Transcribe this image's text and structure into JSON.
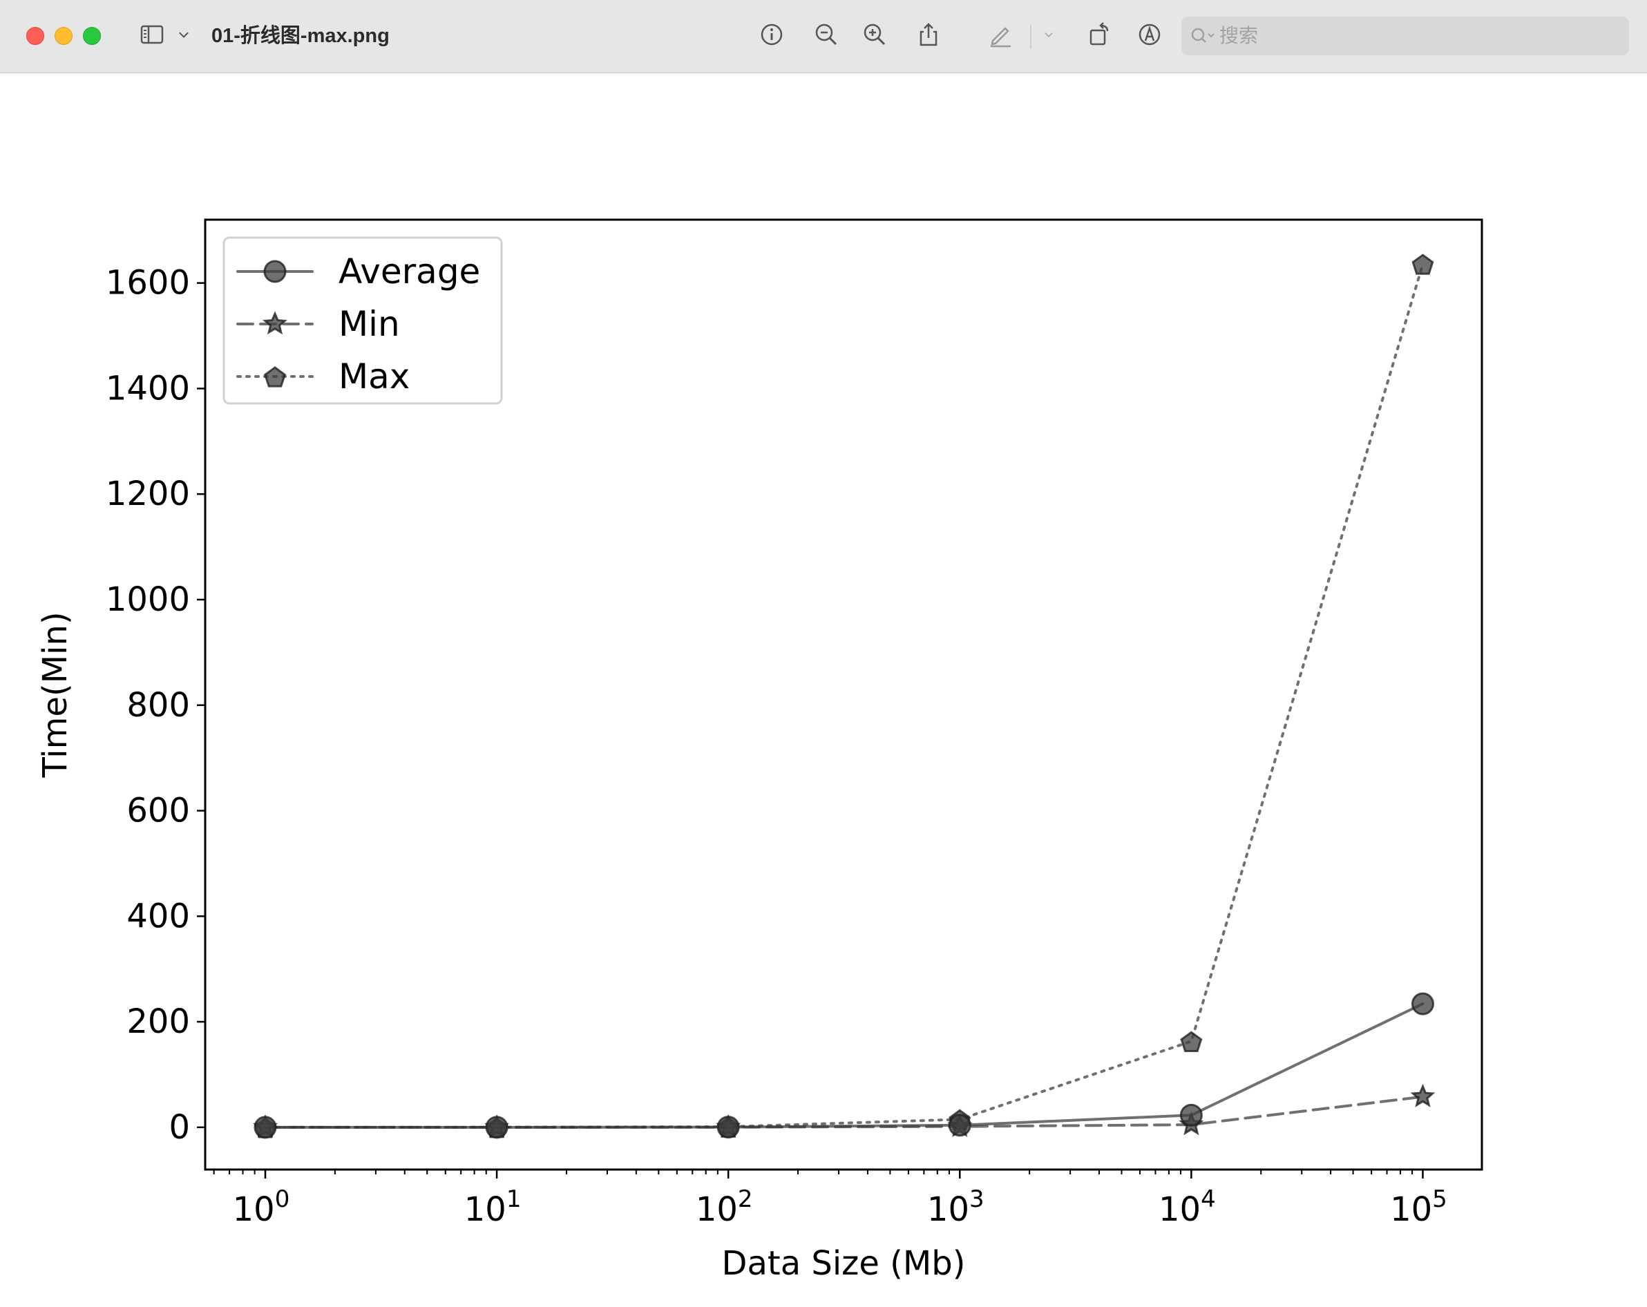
{
  "window": {
    "title": "01-折线图-max.png",
    "search_placeholder": "搜索"
  },
  "toolbar": {
    "icons": [
      "sidebar-icon",
      "chevron-down-icon",
      "info-icon",
      "zoom-out-icon",
      "zoom-in-icon",
      "share-icon",
      "markup-pen-icon",
      "chevron-down-icon",
      "rotate-icon",
      "annotate-icon",
      "search-icon"
    ]
  },
  "chart_data": {
    "type": "line",
    "xlabel": "Data Size (Mb)",
    "ylabel": "Time(Min)",
    "xscale": "log",
    "xlim": [
      0.55,
      180000
    ],
    "ylim": [
      -80,
      1720
    ],
    "x": [
      1,
      10,
      100,
      1000,
      10000,
      100000
    ],
    "x_tick_labels": [
      {
        "base": "10",
        "exp": "0"
      },
      {
        "base": "10",
        "exp": "1"
      },
      {
        "base": "10",
        "exp": "2"
      },
      {
        "base": "10",
        "exp": "3"
      },
      {
        "base": "10",
        "exp": "4"
      },
      {
        "base": "10",
        "exp": "5"
      }
    ],
    "y_ticks": [
      0,
      200,
      400,
      600,
      800,
      1000,
      1200,
      1400,
      1600
    ],
    "y_tick_labels": [
      "0",
      "200",
      "400",
      "600",
      "800",
      "1000",
      "1200",
      "1400",
      "1600"
    ],
    "legend_position": "top-left",
    "grid": false,
    "series": [
      {
        "name": "Average",
        "values": [
          0.02,
          0.05,
          0.4,
          4,
          23,
          234
        ],
        "linestyle": "solid",
        "marker": "circle",
        "color": "#333333"
      },
      {
        "name": "Min",
        "values": [
          0.01,
          0.02,
          0.2,
          1.5,
          5,
          58
        ],
        "linestyle": "dashed",
        "marker": "star",
        "color": "#333333"
      },
      {
        "name": "Max",
        "values": [
          0.05,
          0.1,
          1,
          15,
          163,
          1636
        ],
        "linestyle": "dotted",
        "marker": "pentagon",
        "color": "#333333"
      }
    ]
  }
}
